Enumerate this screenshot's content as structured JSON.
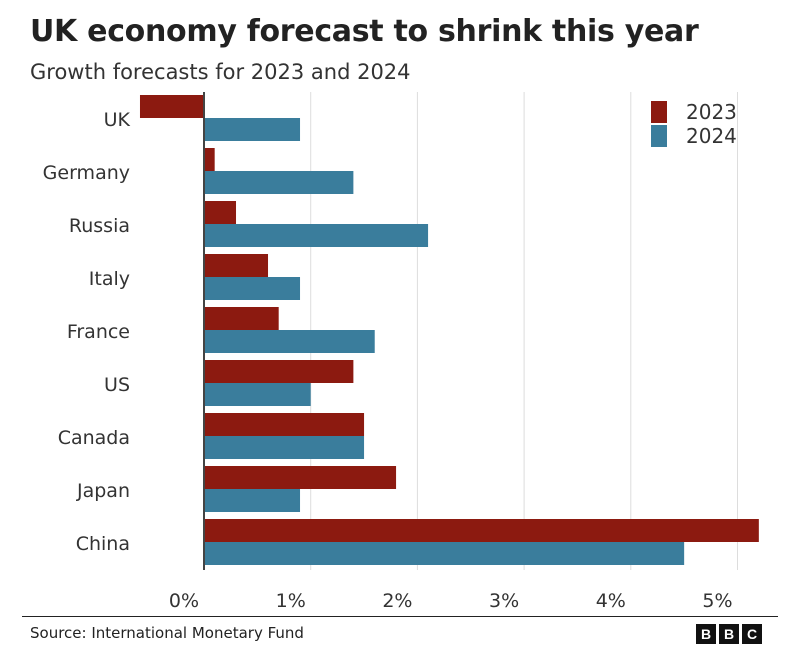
{
  "chart_data": {
    "type": "bar",
    "orientation": "horizontal",
    "title": "UK economy forecast to shrink this year",
    "subtitle": "Growth forecasts for 2023 and 2024",
    "categories": [
      "UK",
      "Germany",
      "Russia",
      "Italy",
      "France",
      "US",
      "Canada",
      "Japan",
      "China"
    ],
    "series": [
      {
        "name": "2023",
        "color": "#8c1a10",
        "values": [
          -0.6,
          0.1,
          0.3,
          0.6,
          0.7,
          1.4,
          1.5,
          1.8,
          5.2
        ]
      },
      {
        "name": "2024",
        "color": "#3a7d9c",
        "values": [
          0.9,
          1.4,
          2.1,
          0.9,
          1.6,
          1.0,
          1.5,
          0.9,
          4.5
        ]
      }
    ],
    "xlim": [
      -0.6,
      5.3
    ],
    "xticks": [
      "0%",
      "1%",
      "2%",
      "3%",
      "4%",
      "5%"
    ],
    "grid": true,
    "legend": "top-right",
    "source": "Source: International Monetary Fund"
  },
  "logo": "BBC"
}
